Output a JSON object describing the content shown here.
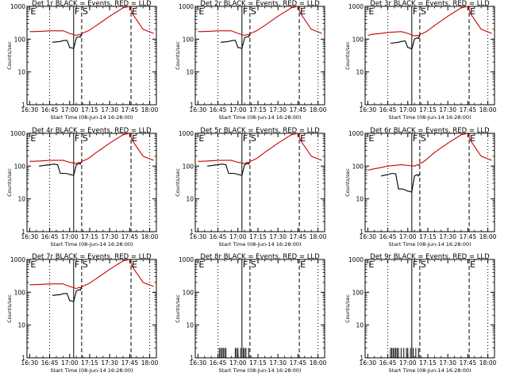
{
  "chart_data": [
    {
      "type": "line",
      "title": "Det 1r BLACK = Events, RED = LLD",
      "xlabel": "Start Time (08-Jun-14 16:28:00)",
      "ylabel": "Counts/sec",
      "xlim": [
        "16:28",
        "18:05"
      ],
      "ylim": [
        1,
        1000
      ],
      "y_scale": "log",
      "x_ticks": [
        "16:30",
        "16:45",
        "17:00",
        "17:15",
        "17:30",
        "17:45",
        "18:00"
      ],
      "y_ticks": [
        "1",
        "10",
        "100",
        "1000"
      ],
      "markers": [
        {
          "label": "E",
          "time": "16:30",
          "style": "solid"
        },
        {
          "label": "F",
          "time": "17:03",
          "style": "solid"
        },
        {
          "label": "S",
          "time": "17:09",
          "style": "dashed"
        },
        {
          "label": "E",
          "time": "17:46",
          "style": "dashed"
        }
      ],
      "series": [
        {
          "color": "#000000",
          "x": [
            "16:47",
            "16:53",
            "16:55",
            "16:58",
            "16:59",
            "17:00",
            "17:01",
            "17:03",
            "17:05",
            "17:07",
            "17:08",
            "17:09"
          ],
          "y": [
            80,
            85,
            90,
            92,
            72,
            55,
            55,
            52,
            110,
            120,
            115,
            140
          ]
        },
        {
          "color": "#cc0000",
          "x": [
            "16:30",
            "16:33",
            "16:40",
            "16:45",
            "16:55",
            "17:00",
            "17:05",
            "17:07",
            "17:08",
            "17:09",
            "17:11",
            "17:14",
            "17:20",
            "17:30",
            "17:40",
            "17:45",
            "17:47",
            "17:55",
            "18:03"
          ],
          "y": [
            170,
            170,
            175,
            180,
            180,
            150,
            130,
            140,
            135,
            150,
            160,
            180,
            260,
            500,
            900,
            1000,
            600,
            200,
            150
          ]
        }
      ]
    },
    {
      "type": "line",
      "title": "Det 2r BLACK = Events, RED = LLD",
      "xlabel": "Start Time (08-Jun-14 16:28:00)",
      "ylabel": "Counts/sec",
      "xlim": [
        "16:28",
        "18:05"
      ],
      "ylim": [
        1,
        1000
      ],
      "y_scale": "log",
      "x_ticks": [
        "16:30",
        "16:45",
        "17:00",
        "17:15",
        "17:30",
        "17:45",
        "18:00"
      ],
      "y_ticks": [
        "1",
        "10",
        "100",
        "1000"
      ],
      "markers": [
        {
          "label": "E",
          "time": "16:30",
          "style": "solid"
        },
        {
          "label": "F",
          "time": "17:03",
          "style": "solid"
        },
        {
          "label": "S",
          "time": "17:09",
          "style": "dashed"
        },
        {
          "label": "E",
          "time": "17:46",
          "style": "dashed"
        }
      ],
      "series": [
        {
          "color": "#000000",
          "x": [
            "16:47",
            "16:53",
            "16:55",
            "16:58",
            "16:59",
            "17:00",
            "17:01",
            "17:03",
            "17:05",
            "17:07",
            "17:08",
            "17:09"
          ],
          "y": [
            80,
            85,
            90,
            92,
            72,
            55,
            55,
            52,
            110,
            120,
            115,
            140
          ]
        },
        {
          "color": "#cc0000",
          "x": [
            "16:30",
            "16:33",
            "16:40",
            "16:45",
            "16:55",
            "17:00",
            "17:05",
            "17:07",
            "17:08",
            "17:09",
            "17:11",
            "17:14",
            "17:20",
            "17:30",
            "17:40",
            "17:45",
            "17:47",
            "17:55",
            "18:03"
          ],
          "y": [
            170,
            170,
            175,
            180,
            180,
            150,
            130,
            140,
            135,
            150,
            160,
            180,
            260,
            500,
            900,
            1000,
            600,
            200,
            150
          ]
        }
      ]
    },
    {
      "type": "line",
      "title": "Det 3r BLACK = Events, RED = LLD",
      "xlabel": "Start Time (08-Jun-14 16:28:00)",
      "ylabel": "Counts/sec",
      "xlim": [
        "16:28",
        "18:05"
      ],
      "ylim": [
        1,
        1000
      ],
      "y_scale": "log",
      "x_ticks": [
        "16:30",
        "16:45",
        "17:00",
        "17:15",
        "17:30",
        "17:45",
        "18:00"
      ],
      "y_ticks": [
        "1",
        "10",
        "100",
        "1000"
      ],
      "markers": [
        {
          "label": "E",
          "time": "16:30",
          "style": "solid"
        },
        {
          "label": "F",
          "time": "17:03",
          "style": "solid"
        },
        {
          "label": "S",
          "time": "17:09",
          "style": "dashed"
        },
        {
          "label": "E",
          "time": "17:46",
          "style": "dashed"
        }
      ],
      "series": [
        {
          "color": "#000000",
          "x": [
            "16:47",
            "16:53",
            "16:55",
            "16:58",
            "16:59",
            "17:00",
            "17:01",
            "17:03",
            "17:05",
            "17:07",
            "17:08",
            "17:09"
          ],
          "y": [
            75,
            80,
            85,
            88,
            70,
            55,
            55,
            50,
            100,
            110,
            105,
            130
          ]
        },
        {
          "color": "#cc0000",
          "x": [
            "16:30",
            "16:33",
            "16:40",
            "16:45",
            "16:55",
            "17:00",
            "17:05",
            "17:07",
            "17:08",
            "17:09",
            "17:11",
            "17:14",
            "17:20",
            "17:30",
            "17:40",
            "17:45",
            "17:47",
            "17:55",
            "18:03"
          ],
          "y": [
            130,
            140,
            150,
            160,
            170,
            150,
            125,
            130,
            125,
            140,
            150,
            170,
            260,
            500,
            900,
            1000,
            600,
            200,
            150
          ]
        }
      ]
    },
    {
      "type": "line",
      "title": "Det 4r BLACK = Events, RED = LLD",
      "xlabel": "Start Time (08-Jun-14 16:28:00)",
      "ylabel": "Counts/sec",
      "xlim": [
        "16:28",
        "18:05"
      ],
      "ylim": [
        1,
        1000
      ],
      "y_scale": "log",
      "x_ticks": [
        "16:30",
        "16:45",
        "17:00",
        "17:15",
        "17:30",
        "17:45",
        "18:00"
      ],
      "y_ticks": [
        "1",
        "10",
        "100",
        "1000"
      ],
      "markers": [
        {
          "label": "E",
          "time": "16:30",
          "style": "solid"
        },
        {
          "label": "F",
          "time": "17:03",
          "style": "solid"
        },
        {
          "label": "S",
          "time": "17:09",
          "style": "dashed"
        },
        {
          "label": "E",
          "time": "17:46",
          "style": "dashed"
        }
      ],
      "series": [
        {
          "color": "#000000",
          "x": [
            "16:37",
            "16:45",
            "16:48",
            "16:51",
            "16:53",
            "16:56",
            "16:59",
            "17:00",
            "17:01",
            "17:03",
            "17:05",
            "17:07",
            "17:08",
            "17:09"
          ],
          "y": [
            100,
            110,
            115,
            110,
            60,
            60,
            58,
            55,
            55,
            52,
            110,
            120,
            115,
            140
          ]
        },
        {
          "color": "#cc0000",
          "x": [
            "16:30",
            "16:33",
            "16:40",
            "16:45",
            "16:55",
            "17:00",
            "17:05",
            "17:07",
            "17:08",
            "17:09",
            "17:11",
            "17:14",
            "17:20",
            "17:30",
            "17:40",
            "17:45",
            "17:47",
            "17:55",
            "18:03"
          ],
          "y": [
            140,
            140,
            145,
            150,
            150,
            130,
            120,
            130,
            125,
            140,
            150,
            170,
            260,
            500,
            900,
            1000,
            600,
            200,
            150
          ]
        }
      ]
    },
    {
      "type": "line",
      "title": "Det 5r BLACK = Events, RED = LLD",
      "xlabel": "Start Time (08-Jun-14 16:28:00)",
      "ylabel": "Counts/sec",
      "xlim": [
        "16:28",
        "18:05"
      ],
      "ylim": [
        1,
        1000
      ],
      "y_scale": "log",
      "x_ticks": [
        "16:30",
        "16:45",
        "17:00",
        "17:15",
        "17:30",
        "17:45",
        "18:00"
      ],
      "y_ticks": [
        "1",
        "10",
        "100",
        "1000"
      ],
      "markers": [
        {
          "label": "E",
          "time": "16:30",
          "style": "solid"
        },
        {
          "label": "F",
          "time": "17:03",
          "style": "solid"
        },
        {
          "label": "S",
          "time": "17:09",
          "style": "dashed"
        },
        {
          "label": "E",
          "time": "17:46",
          "style": "dashed"
        }
      ],
      "series": [
        {
          "color": "#000000",
          "x": [
            "16:37",
            "16:45",
            "16:48",
            "16:51",
            "16:53",
            "16:56",
            "16:59",
            "17:00",
            "17:01",
            "17:03",
            "17:05",
            "17:07",
            "17:08",
            "17:09"
          ],
          "y": [
            100,
            110,
            115,
            110,
            60,
            60,
            58,
            55,
            55,
            52,
            110,
            120,
            115,
            140
          ]
        },
        {
          "color": "#cc0000",
          "x": [
            "16:30",
            "16:33",
            "16:40",
            "16:45",
            "16:55",
            "17:00",
            "17:05",
            "17:07",
            "17:08",
            "17:09",
            "17:11",
            "17:14",
            "17:20",
            "17:30",
            "17:40",
            "17:45",
            "17:47",
            "17:55",
            "18:03"
          ],
          "y": [
            140,
            140,
            145,
            150,
            150,
            130,
            120,
            130,
            125,
            140,
            150,
            170,
            260,
            500,
            900,
            1000,
            600,
            200,
            150
          ]
        }
      ]
    },
    {
      "type": "line",
      "title": "Det 6r BLACK = Events, RED = LLD",
      "xlabel": "Start Time (08-Jun-14 16:28:00)",
      "ylabel": "Counts/sec",
      "xlim": [
        "16:28",
        "18:05"
      ],
      "ylim": [
        1,
        1000
      ],
      "y_scale": "log",
      "x_ticks": [
        "16:30",
        "16:45",
        "17:00",
        "17:15",
        "17:30",
        "17:45",
        "18:00"
      ],
      "y_ticks": [
        "1",
        "10",
        "100",
        "1000"
      ],
      "markers": [
        {
          "label": "E",
          "time": "16:30",
          "style": "solid"
        },
        {
          "label": "F",
          "time": "17:03",
          "style": "solid"
        },
        {
          "label": "S",
          "time": "17:09",
          "style": "dashed"
        },
        {
          "label": "E",
          "time": "17:46",
          "style": "dashed"
        }
      ],
      "series": [
        {
          "color": "#000000",
          "x": [
            "16:40",
            "16:45",
            "16:48",
            "16:51",
            "16:53",
            "16:56",
            "16:59",
            "17:00",
            "17:01",
            "17:03",
            "17:05",
            "17:07",
            "17:08",
            "17:09"
          ],
          "y": [
            50,
            55,
            60,
            58,
            20,
            20,
            18,
            17,
            17,
            16,
            50,
            55,
            50,
            60
          ]
        },
        {
          "color": "#cc0000",
          "x": [
            "16:30",
            "16:33",
            "16:40",
            "16:45",
            "16:55",
            "17:00",
            "17:05",
            "17:07",
            "17:08",
            "17:09",
            "17:11",
            "17:14",
            "17:20",
            "17:30",
            "17:40",
            "17:45",
            "17:47",
            "17:55",
            "18:03"
          ],
          "y": [
            75,
            80,
            90,
            100,
            110,
            105,
            100,
            110,
            105,
            120,
            130,
            160,
            260,
            500,
            900,
            1000,
            600,
            200,
            150
          ]
        }
      ]
    },
    {
      "type": "line",
      "title": "Det 7r BLACK = Events, RED = LLD",
      "xlabel": "Start Time (08-Jun-14 16:28:00)",
      "ylabel": "Counts/sec",
      "xlim": [
        "16:28",
        "18:05"
      ],
      "ylim": [
        1,
        1000
      ],
      "y_scale": "log",
      "x_ticks": [
        "16:30",
        "16:45",
        "17:00",
        "17:15",
        "17:30",
        "17:45",
        "18:00"
      ],
      "y_ticks": [
        "1",
        "10",
        "100",
        "1000"
      ],
      "markers": [
        {
          "label": "E",
          "time": "16:30",
          "style": "solid"
        },
        {
          "label": "F",
          "time": "17:03",
          "style": "solid"
        },
        {
          "label": "S",
          "time": "17:09",
          "style": "dashed"
        },
        {
          "label": "E",
          "time": "17:46",
          "style": "dashed"
        }
      ],
      "series": [
        {
          "color": "#000000",
          "x": [
            "16:47",
            "16:53",
            "16:55",
            "16:58",
            "16:59",
            "17:00",
            "17:01",
            "17:03",
            "17:05",
            "17:07",
            "17:08",
            "17:09"
          ],
          "y": [
            80,
            85,
            90,
            92,
            72,
            55,
            55,
            52,
            110,
            120,
            115,
            140
          ]
        },
        {
          "color": "#cc0000",
          "x": [
            "16:30",
            "16:33",
            "16:40",
            "16:45",
            "16:55",
            "17:00",
            "17:05",
            "17:07",
            "17:08",
            "17:09",
            "17:11",
            "17:14",
            "17:20",
            "17:30",
            "17:40",
            "17:45",
            "17:47",
            "17:55",
            "18:03"
          ],
          "y": [
            170,
            170,
            175,
            180,
            180,
            150,
            130,
            140,
            135,
            150,
            160,
            180,
            260,
            500,
            900,
            1000,
            600,
            200,
            150
          ]
        }
      ]
    },
    {
      "type": "line",
      "title": "Det 8r BLACK = Events, RED = LLD",
      "xlabel": "Start Time (08-Jun-14 16:28:00)",
      "ylabel": "Counts/sec",
      "xlim": [
        "16:28",
        "18:05"
      ],
      "ylim": [
        1,
        1000
      ],
      "y_scale": "log",
      "x_ticks": [
        "16:30",
        "16:45",
        "17:00",
        "17:15",
        "17:30",
        "17:45",
        "18:00"
      ],
      "y_ticks": [
        "1",
        "10",
        "100",
        "1000"
      ],
      "markers": [
        {
          "label": "E",
          "time": "16:30",
          "style": "solid"
        },
        {
          "label": "F",
          "time": "17:03",
          "style": "solid"
        },
        {
          "label": "S",
          "time": "17:09",
          "style": "dashed"
        },
        {
          "label": "E",
          "time": "17:46",
          "style": "dashed"
        }
      ],
      "spikes": {
        "color": "#000000",
        "value": 2,
        "times": [
          "16:46",
          "16:47",
          "16:48",
          "16:49",
          "16:50",
          "16:51",
          "16:58",
          "16:59",
          "17:00",
          "17:02",
          "17:04",
          "17:05",
          "17:06",
          "17:08"
        ]
      },
      "series": []
    },
    {
      "type": "line",
      "title": "Det 9r BLACK = Events, RED = LLD",
      "xlabel": "Start Time (08-Jun-14 16:28:00)",
      "ylabel": "Counts/sec",
      "xlim": [
        "16:28",
        "18:05"
      ],
      "ylim": [
        1,
        1000
      ],
      "y_scale": "log",
      "x_ticks": [
        "16:30",
        "16:45",
        "17:00",
        "17:15",
        "17:30",
        "17:45",
        "18:00"
      ],
      "y_ticks": [
        "1",
        "10",
        "100",
        "1000"
      ],
      "markers": [
        {
          "label": "E",
          "time": "16:30",
          "style": "solid"
        },
        {
          "label": "F",
          "time": "17:03",
          "style": "solid"
        },
        {
          "label": "S",
          "time": "17:09",
          "style": "dashed"
        },
        {
          "label": "E",
          "time": "17:46",
          "style": "dashed"
        }
      ],
      "spikes": {
        "color": "#000000",
        "value": 2,
        "times": [
          "16:47",
          "16:48",
          "16:49",
          "16:50",
          "16:51",
          "16:52",
          "16:53",
          "16:55",
          "16:57",
          "16:59",
          "17:00",
          "17:02",
          "17:04",
          "17:06",
          "17:08"
        ]
      },
      "series": []
    }
  ]
}
